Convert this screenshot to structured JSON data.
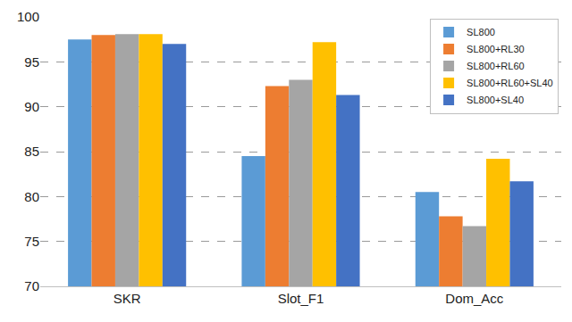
{
  "chart_data": {
    "type": "bar",
    "categories": [
      "SKR",
      "Slot_F1",
      "Dom_Acc"
    ],
    "series": [
      {
        "name": "SL800",
        "color": "#5B9BD5",
        "values": [
          97.5,
          84.5,
          80.5
        ]
      },
      {
        "name": "SL800+RL30",
        "color": "#ED7D31",
        "values": [
          98.0,
          92.3,
          77.8
        ]
      },
      {
        "name": "SL800+RL60",
        "color": "#A5A5A5",
        "values": [
          98.1,
          93.0,
          76.7
        ]
      },
      {
        "name": "SL800+RL60+SL40",
        "color": "#FFC000",
        "values": [
          98.1,
          97.2,
          84.2
        ]
      },
      {
        "name": "SL800+SL40",
        "color": "#4472C4",
        "values": [
          97.0,
          91.3,
          81.7
        ]
      }
    ],
    "ylim": [
      70,
      100
    ],
    "yticks": [
      70,
      75,
      80,
      85,
      90,
      95,
      100
    ],
    "grid": true,
    "legend": "upper right"
  }
}
